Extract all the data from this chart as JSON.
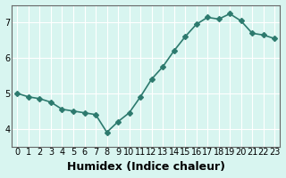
{
  "x": [
    0,
    1,
    2,
    3,
    4,
    5,
    6,
    7,
    8,
    9,
    10,
    11,
    12,
    13,
    14,
    15,
    16,
    17,
    18,
    19,
    20,
    21,
    22,
    23
  ],
  "y": [
    5.0,
    4.9,
    4.85,
    4.75,
    4.55,
    4.5,
    4.45,
    4.4,
    3.9,
    4.2,
    4.45,
    4.9,
    5.4,
    5.75,
    6.2,
    6.6,
    6.95,
    7.15,
    7.1,
    7.25,
    7.05,
    6.7,
    6.65,
    6.55
  ],
  "line_color": "#2d7a6e",
  "marker": "D",
  "marker_size": 3,
  "bg_color": "#d8f5f0",
  "grid_color": "#ffffff",
  "xlabel": "Humidex (Indice chaleur)",
  "xlabel_fontsize": 9,
  "ylabel_ticks": [
    4,
    5,
    6,
    7
  ],
  "xlim": [
    -0.5,
    23.5
  ],
  "ylim": [
    3.5,
    7.5
  ],
  "xticks": [
    0,
    1,
    2,
    3,
    4,
    5,
    6,
    7,
    8,
    9,
    10,
    11,
    12,
    13,
    14,
    15,
    16,
    17,
    18,
    19,
    20,
    21,
    22,
    23
  ],
  "tick_fontsize": 7
}
